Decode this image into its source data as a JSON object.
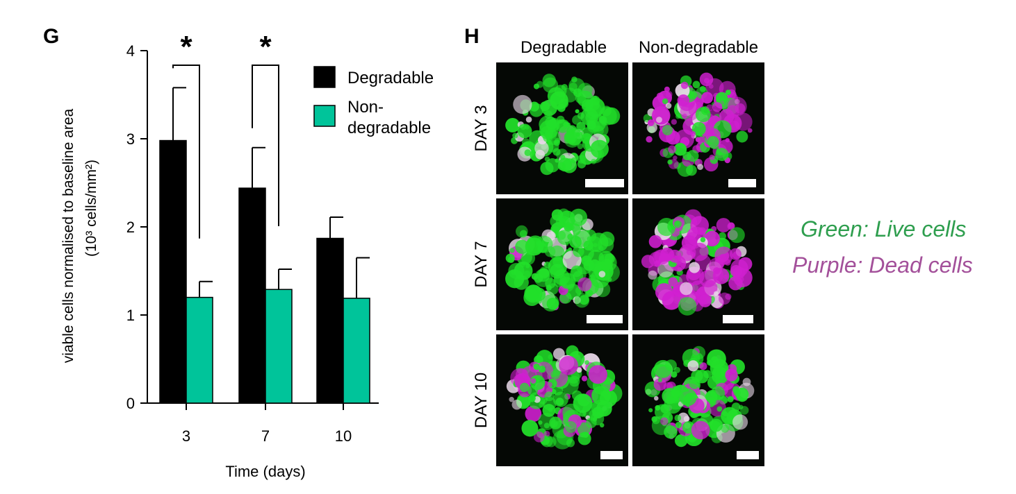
{
  "panel_g": {
    "label": "G"
  },
  "panel_h": {
    "label": "H"
  },
  "chart_data": {
    "type": "bar",
    "categories": [
      "3",
      "7",
      "10"
    ],
    "series": [
      {
        "name": "Degradable",
        "values": [
          2.98,
          2.44,
          1.87
        ],
        "errors": [
          0.6,
          0.46,
          0.24
        ],
        "color": "#000000"
      },
      {
        "name": "Non-\ndegradable",
        "values": [
          1.2,
          1.29,
          1.19
        ],
        "errors": [
          0.18,
          0.23,
          0.46
        ],
        "color": "#00c49a"
      }
    ],
    "xlabel": "Time (days)",
    "ylabel_line1": "viable cells normalised to baseline area",
    "ylabel_line2": "(10³ cells/mm²)",
    "ylim": [
      0,
      4
    ],
    "yticks": [
      "0",
      "1",
      "2",
      "3",
      "4"
    ],
    "significance": [
      {
        "category": "3",
        "label": "*"
      },
      {
        "category": "7",
        "label": "*"
      }
    ],
    "legend": {
      "placement": "top-right",
      "entries": [
        "Degradable",
        "Non-degradable"
      ]
    },
    "grid": false
  },
  "microscopy": {
    "columns": [
      "Degradable",
      "Non-degradable"
    ],
    "rows": [
      "DAY 3",
      "DAY 7",
      "DAY 10"
    ],
    "live_color": "#22e02a",
    "dead_color": "#d020d0"
  },
  "stain_legend": {
    "green": {
      "text": "Green: Live cells",
      "color": "#2e9e4e"
    },
    "purple": {
      "text": "Purple: Dead cells",
      "color": "#a3509a"
    }
  }
}
